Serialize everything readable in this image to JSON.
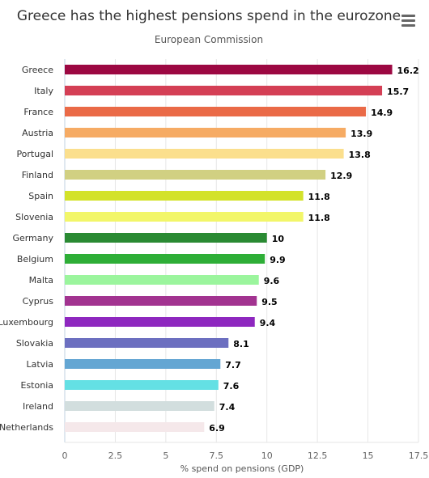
{
  "chart_data": {
    "type": "bar",
    "orientation": "horizontal",
    "title": "Greece has the highest pensions spend in the eurozone",
    "subtitle": "European Commission",
    "xlabel": "% spend on pensions (GDP)",
    "ylabel": "",
    "xlim": [
      0,
      17.5
    ],
    "ticks": [
      "0",
      "2.5",
      "5",
      "7.5",
      "10",
      "12.5",
      "15",
      "17.5"
    ],
    "grid": true,
    "data_labels": true,
    "categories": [
      "Greece",
      "Italy",
      "France",
      "Austria",
      "Portugal",
      "Finland",
      "Spain",
      "Slovenia",
      "Germany",
      "Belgium",
      "Malta",
      "Cyprus",
      "Luxembourg",
      "Slovakia",
      "Latvia",
      "Estonia",
      "Ireland",
      "Netherlands"
    ],
    "values": [
      16.2,
      15.7,
      14.9,
      13.9,
      13.8,
      12.9,
      11.8,
      11.8,
      10,
      9.9,
      9.6,
      9.5,
      9.4,
      8.1,
      7.7,
      7.6,
      7.4,
      6.9
    ],
    "colors": [
      "#9c0842",
      "#d43f55",
      "#ea6a47",
      "#f6ab64",
      "#fbdf8d",
      "#d1d082",
      "#d3e22a",
      "#f2f669",
      "#2a8a33",
      "#2eae37",
      "#9bf59d",
      "#a23390",
      "#8e27bf",
      "#6c6fc0",
      "#64a6d3",
      "#64e0e4",
      "#d2dede",
      "#f5e8ea"
    ]
  },
  "ui": {
    "menu_icon": "hamburger-menu-icon"
  }
}
